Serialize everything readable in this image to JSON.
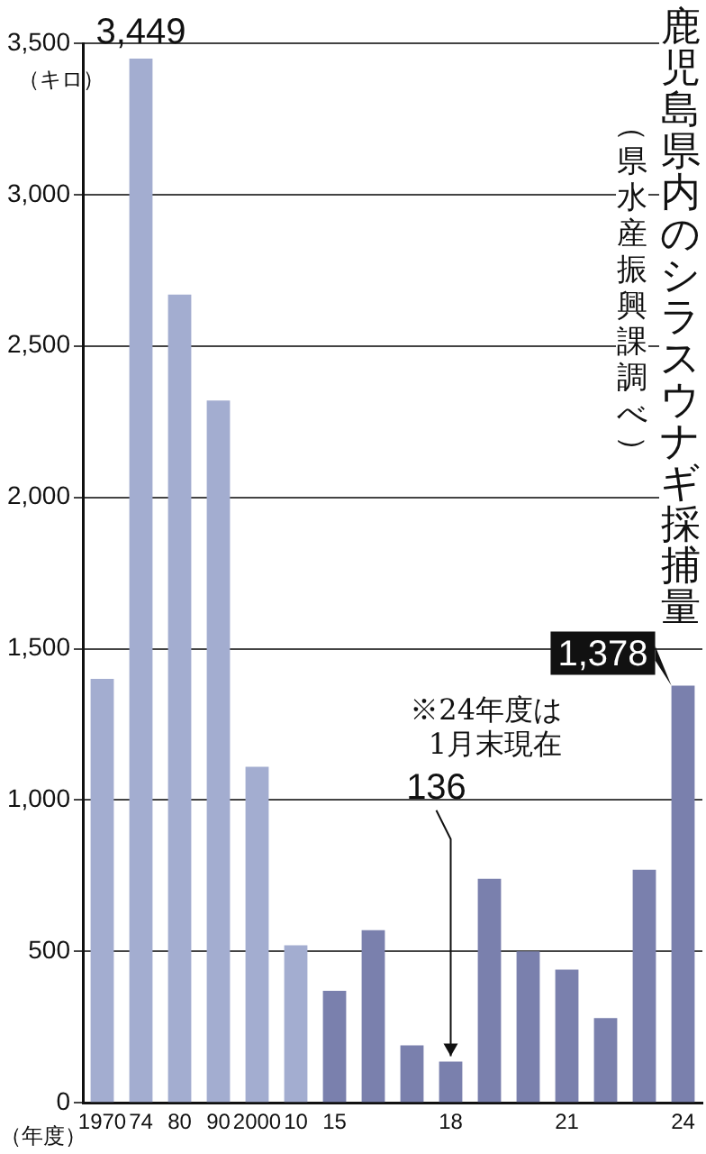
{
  "chart_data": {
    "type": "bar",
    "title": "鹿児島県内のシラスウナギ採捕量",
    "subtitle": "（県水産振興課調べ）",
    "ylabel": "（キロ）",
    "xlabel": "（年度）",
    "categories": [
      "1970",
      "74",
      "80",
      "90",
      "2000",
      "10",
      "15",
      null,
      null,
      "18",
      null,
      null,
      "21",
      null,
      null,
      "24"
    ],
    "values": [
      1400,
      3449,
      2670,
      2320,
      1110,
      520,
      370,
      570,
      190,
      136,
      740,
      500,
      440,
      280,
      770,
      1378
    ],
    "colors": [
      "#a3add0",
      "#a3add0",
      "#a3add0",
      "#a3add0",
      "#a3add0",
      "#a3add0",
      "#7a80ad",
      "#7a80ad",
      "#7a80ad",
      "#7a80ad",
      "#7a80ad",
      "#7a80ad",
      "#7a80ad",
      "#7a80ad",
      "#7a80ad",
      "#7a80ad"
    ],
    "value_labels": [
      null,
      "3,449",
      null,
      null,
      null,
      null,
      null,
      null,
      null,
      "136",
      null,
      null,
      null,
      null,
      null,
      "1,378"
    ],
    "ylim": [
      0,
      3500
    ],
    "yticks": [
      0,
      {
        "value": 500,
        "label": "500"
      },
      {
        "value": 1000,
        "label": "1,000"
      },
      {
        "value": 1500,
        "label": "1,500"
      },
      {
        "value": 2000,
        "label": "2,000"
      },
      {
        "value": 2500,
        "label": "2,500"
      },
      {
        "value": 3000,
        "label": "3,000"
      },
      {
        "value": 3500,
        "label": "3,500"
      }
    ],
    "grid": "y",
    "annotations": [
      "※24年度は1月末現在"
    ]
  }
}
